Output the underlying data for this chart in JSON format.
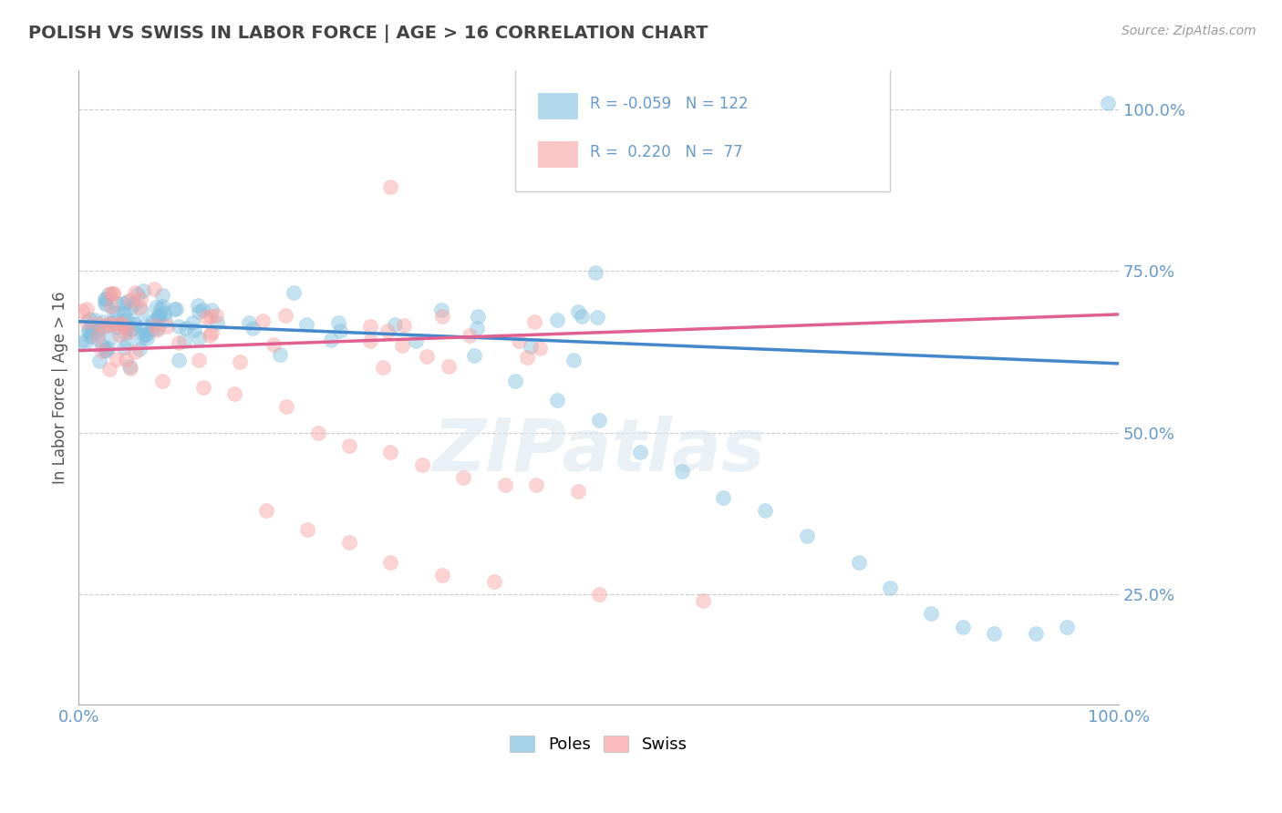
{
  "title": "POLISH VS SWISS IN LABOR FORCE | AGE > 16 CORRELATION CHART",
  "source_text": "Source: ZipAtlas.com",
  "ylabel": "In Labor Force | Age > 16",
  "r_poles": -0.059,
  "n_poles": 122,
  "r_swiss": 0.22,
  "n_swiss": 77,
  "xlim": [
    0.0,
    1.0
  ],
  "ylim": [
    0.08,
    1.06
  ],
  "yticks": [
    0.25,
    0.5,
    0.75,
    1.0
  ],
  "ytick_labels": [
    "25.0%",
    "50.0%",
    "75.0%",
    "100.0%"
  ],
  "xticks": [
    0.0,
    0.25,
    0.5,
    0.75,
    1.0
  ],
  "xtick_labels": [
    "0.0%",
    "",
    "",
    "",
    "100.0%"
  ],
  "color_poles": "#7fbfdf",
  "color_swiss": "#f9a0a0",
  "color_poles_line": "#4488cc",
  "color_swiss_line": "#e06090",
  "background_color": "#ffffff",
  "watermark": "ZIPatlas",
  "title_color": "#444444",
  "axis_color": "#6699cc",
  "grid_color": "#cccccc",
  "poles_line_x": [
    0.0,
    1.0
  ],
  "poles_line_y": [
    0.672,
    0.607
  ],
  "swiss_line_x": [
    0.0,
    1.0
  ],
  "swiss_line_y": [
    0.627,
    0.683
  ],
  "legend_r_poles_text": "R = -0.059   N = 122",
  "legend_r_swiss_text": "R =  0.220   N =  77"
}
